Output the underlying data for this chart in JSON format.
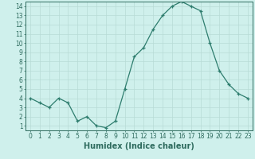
{
  "x": [
    0,
    1,
    2,
    3,
    4,
    5,
    6,
    7,
    8,
    9,
    10,
    11,
    12,
    13,
    14,
    15,
    16,
    17,
    18,
    19,
    20,
    21,
    22,
    23
  ],
  "y": [
    4.0,
    3.5,
    3.0,
    4.0,
    3.5,
    1.5,
    2.0,
    1.0,
    0.8,
    1.5,
    5.0,
    8.5,
    9.5,
    11.5,
    13.0,
    14.0,
    14.5,
    14.0,
    13.5,
    10.0,
    7.0,
    5.5,
    4.5,
    4.0
  ],
  "title": "",
  "xlabel": "Humidex (Indice chaleur)",
  "ylabel": "",
  "line_color": "#2e7d6e",
  "marker": "+",
  "bg_color": "#cff0ec",
  "grid_color": "#b8dbd6",
  "xlim": [
    -0.5,
    23.5
  ],
  "ylim": [
    0.5,
    14.5
  ],
  "yticks": [
    1,
    2,
    3,
    4,
    5,
    6,
    7,
    8,
    9,
    10,
    11,
    12,
    13,
    14
  ],
  "xticks": [
    0,
    1,
    2,
    3,
    4,
    5,
    6,
    7,
    8,
    9,
    10,
    11,
    12,
    13,
    14,
    15,
    16,
    17,
    18,
    19,
    20,
    21,
    22,
    23
  ],
  "tick_fontsize": 5.5,
  "xlabel_fontsize": 7.0,
  "axis_color": "#2e6b5e",
  "linewidth": 0.9,
  "markersize": 3.5
}
